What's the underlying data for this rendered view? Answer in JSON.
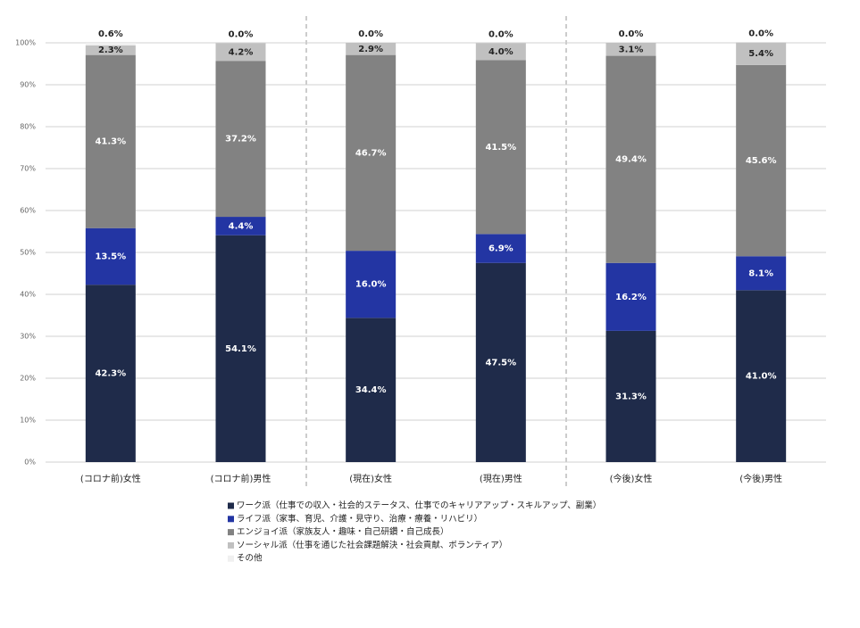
{
  "chart_data": {
    "type": "stacked_bar",
    "categories": [
      "(コロナ前)女性",
      "(コロナ前)男性",
      "(現在)女性",
      "(現在)男性",
      "(今後)女性",
      "(今後)男性"
    ],
    "series": [
      {
        "name": "ワーク派（仕事での収入・社会的ステータス、仕事でのキャリアアップ・スキルアップ、副業）",
        "color": "#1f2b4a",
        "values": [
          42.3,
          54.1,
          34.4,
          47.5,
          31.3,
          41.0
        ],
        "value_labels": [
          "42.3%",
          "54.1%",
          "34.4%",
          "47.5%",
          "31.3%",
          "41.0%"
        ]
      },
      {
        "name": "ライフ派（家事、育児、介護・見守り、治療・療養・リハビリ）",
        "color": "#2335a3",
        "values": [
          13.5,
          4.4,
          16.0,
          6.9,
          16.2,
          8.1
        ],
        "value_labels": [
          "13.5%",
          "4.4%",
          "16.0%",
          "6.9%",
          "16.2%",
          "8.1%"
        ]
      },
      {
        "name": "エンジョイ派（家族友人・趣味・自己研鑽・自己成長）",
        "color": "#828282",
        "values": [
          41.3,
          37.2,
          46.7,
          41.5,
          49.4,
          45.6
        ],
        "value_labels": [
          "41.3%",
          "37.2%",
          "46.7%",
          "41.5%",
          "49.4%",
          "45.6%"
        ]
      },
      {
        "name": "ソーシャル派（仕事を通じた社会課題解決・社会貢献、ボランティア）",
        "color": "#c0c0c0",
        "values": [
          2.3,
          4.2,
          2.9,
          4.0,
          3.1,
          5.4
        ],
        "value_labels": [
          "2.3%",
          "4.2%",
          "2.9%",
          "4.0%",
          "3.1%",
          "5.4%"
        ]
      },
      {
        "name": "その他",
        "color": "#f0f0f0",
        "values": [
          0.6,
          0.0,
          0.0,
          0.0,
          0.0,
          0.0
        ],
        "value_labels": [
          "0.6%",
          "0.0%",
          "0.0%",
          "0.0%",
          "0.0%",
          "0.0%"
        ]
      }
    ],
    "ylim": [
      0,
      100
    ],
    "yticks": [
      {
        "value": 0,
        "label": "0%"
      },
      {
        "value": 10,
        "label": "10%"
      },
      {
        "value": 20,
        "label": "20%"
      },
      {
        "value": 30,
        "label": "30%"
      },
      {
        "value": 40,
        "label": "40%"
      },
      {
        "value": 50,
        "label": "50%"
      },
      {
        "value": 60,
        "label": "60%"
      },
      {
        "value": 70,
        "label": "70%"
      },
      {
        "value": 80,
        "label": "80%"
      },
      {
        "value": 90,
        "label": "90%"
      },
      {
        "value": 100,
        "label": "100%"
      }
    ],
    "grid": true
  }
}
